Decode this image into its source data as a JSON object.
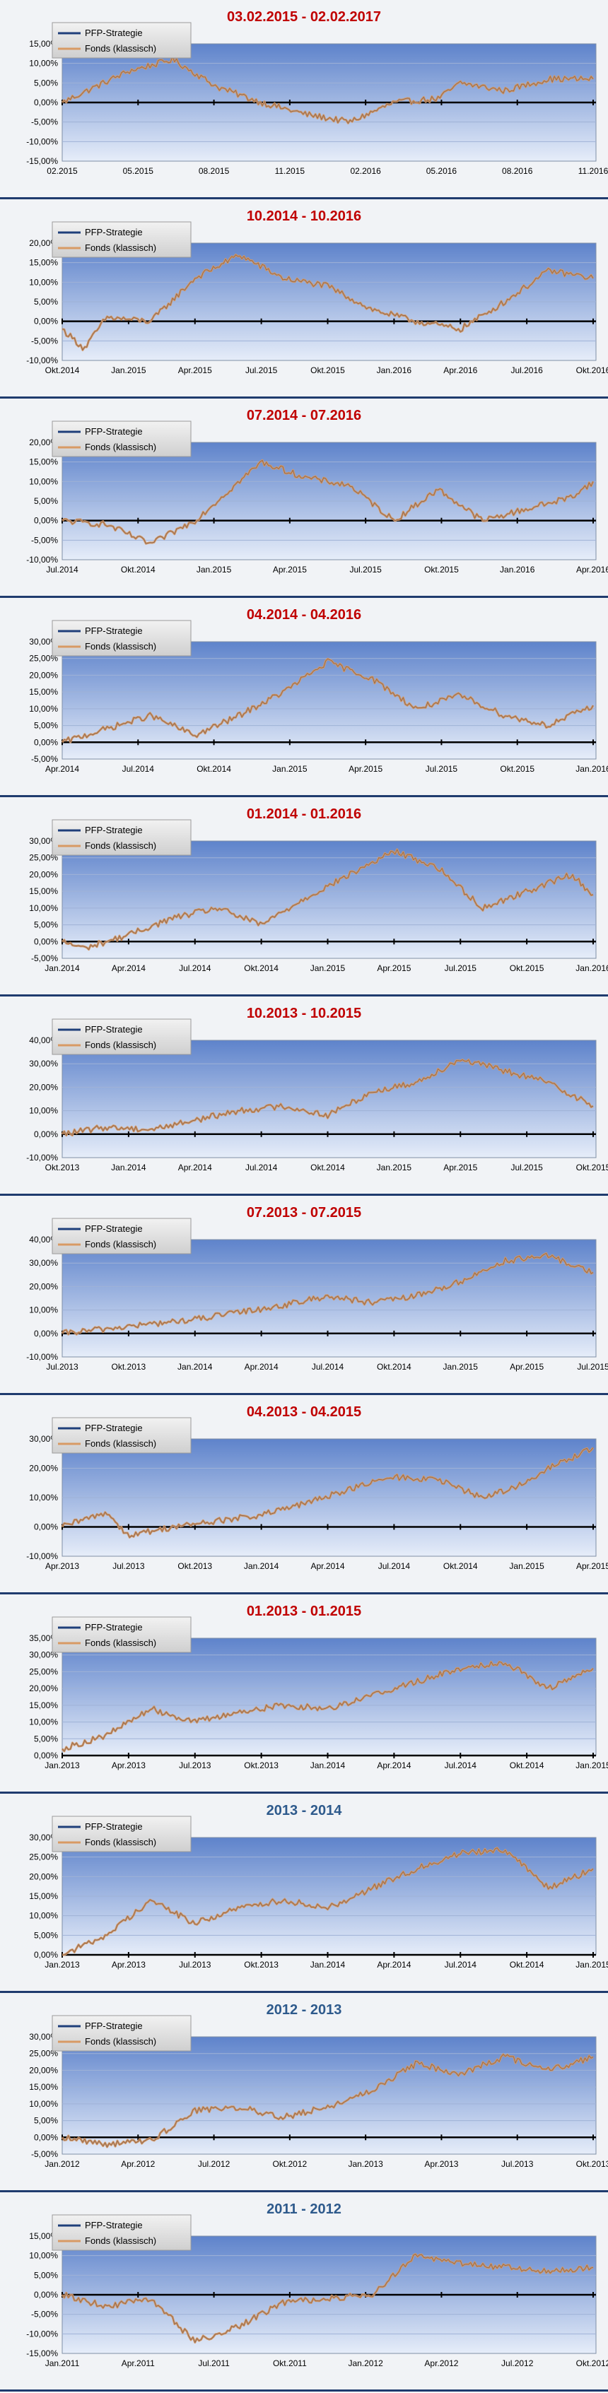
{
  "chart_data": [
    {
      "type": "line",
      "title": "03.02.2015 - 02.02.2017",
      "title_color": "#c00000",
      "legend": [
        "PFP-Strategie",
        "Fonds (klassisch)"
      ],
      "legend_position": "top-left",
      "grid": true,
      "yticks": [
        "15,00%",
        "10,00%",
        "5,00%",
        "0,00%",
        "-5,00%",
        "-10,00%",
        "-15,00%"
      ],
      "ylim": [
        -15,
        15
      ],
      "xticks": [
        "02.2015",
        "05.2015",
        "08.2015",
        "11.2015",
        "02.2016",
        "05.2016",
        "08.2016",
        "11.2016"
      ],
      "series": [
        {
          "name": "Fonds (klassisch)",
          "x": [
            0,
            3,
            5,
            7,
            9,
            11,
            13,
            15,
            17,
            18,
            20,
            22,
            24
          ],
          "values": [
            0,
            8,
            11,
            4,
            0,
            -3,
            -5,
            0,
            1,
            5,
            3,
            6,
            6
          ]
        }
      ]
    },
    {
      "type": "line",
      "title": "10.2014 - 10.2016",
      "title_color": "#c00000",
      "legend": [
        "PFP-Strategie",
        "Fonds (klassisch)"
      ],
      "legend_position": "top-left",
      "grid": true,
      "yticks": [
        "20,00%",
        "15,00%",
        "10,00%",
        "5,00%",
        "0,00%",
        "-5,00%",
        "-10,00%"
      ],
      "ylim": [
        -10,
        20
      ],
      "xticks": [
        "Okt.2014",
        "Jan.2015",
        "Apr.2015",
        "Jul.2015",
        "Okt.2015",
        "Jan.2016",
        "Apr.2016",
        "Jul.2016",
        "Okt.2016"
      ],
      "series": [
        {
          "name": "Fonds (klassisch)",
          "x": [
            0,
            1,
            2,
            4,
            6,
            8,
            10,
            12,
            14,
            16,
            18,
            20,
            22,
            24
          ],
          "values": [
            -2,
            -7,
            1,
            0,
            11,
            17,
            11,
            9,
            3,
            0,
            -2,
            5,
            13,
            11
          ]
        }
      ]
    },
    {
      "type": "line",
      "title": "07.2014 - 07.2016",
      "title_color": "#c00000",
      "legend": [
        "PFP-Strategie",
        "Fonds (klassisch)"
      ],
      "legend_position": "top-left",
      "grid": true,
      "yticks": [
        "20,00%",
        "15,00%",
        "10,00%",
        "5,00%",
        "0,00%",
        "-5,00%",
        "-10,00%"
      ],
      "ylim": [
        -10,
        20
      ],
      "xticks": [
        "Jul.2014",
        "Okt.2014",
        "Jan.2015",
        "Apr.2015",
        "Jul.2015",
        "Okt.2015",
        "Jan.2016",
        "Apr.2016"
      ],
      "series": [
        {
          "name": "Fonds (klassisch)",
          "x": [
            0,
            2,
            4,
            6,
            7,
            9,
            11,
            13,
            15,
            17,
            19,
            21,
            23,
            24
          ],
          "values": [
            0,
            -1,
            -6,
            0,
            5,
            15,
            11,
            9,
            0,
            8,
            0,
            3,
            6,
            10
          ]
        }
      ]
    },
    {
      "type": "line",
      "title": "04.2014 - 04.2016",
      "title_color": "#c00000",
      "legend": [
        "PFP-Strategie",
        "Fonds (klassisch)"
      ],
      "legend_position": "top-left",
      "grid": true,
      "yticks": [
        "30,00%",
        "25,00%",
        "20,00%",
        "15,00%",
        "10,00%",
        "5,00%",
        "0,00%",
        "-5,00%"
      ],
      "ylim": [
        -5,
        30
      ],
      "xticks": [
        "Apr.2014",
        "Jul.2014",
        "Okt.2014",
        "Jan.2015",
        "Apr.2015",
        "Jul.2015",
        "Okt.2015",
        "Jan.2016"
      ],
      "series": [
        {
          "name": "Fonds (klassisch)",
          "x": [
            0,
            2,
            4,
            6,
            8,
            10,
            12,
            14,
            16,
            18,
            20,
            22,
            24
          ],
          "values": [
            0,
            4,
            8,
            2,
            8,
            15,
            24,
            19,
            10,
            14,
            8,
            5,
            11
          ]
        }
      ]
    },
    {
      "type": "line",
      "title": "01.2014 - 01.2016",
      "title_color": "#c00000",
      "legend": [
        "PFP-Strategie",
        "Fonds (klassisch)"
      ],
      "legend_position": "top-left",
      "grid": true,
      "yticks": [
        "30,00%",
        "25,00%",
        "20,00%",
        "15,00%",
        "10,00%",
        "5,00%",
        "0,00%",
        "-5,00%"
      ],
      "ylim": [
        -5,
        30
      ],
      "xticks": [
        "Jan.2014",
        "Apr.2014",
        "Jul.2014",
        "Okt.2014",
        "Jan.2015",
        "Apr.2015",
        "Jul.2015",
        "Okt.2015",
        "Jan.2016"
      ],
      "series": [
        {
          "name": "Fonds (klassisch)",
          "x": [
            0,
            1,
            3,
            5,
            7,
            9,
            11,
            13,
            15,
            17,
            19,
            21,
            23,
            24
          ],
          "values": [
            0,
            -2,
            2,
            7,
            10,
            5,
            13,
            20,
            27,
            22,
            10,
            15,
            20,
            14
          ]
        }
      ]
    },
    {
      "type": "line",
      "title": "10.2013 - 10.2015",
      "title_color": "#c00000",
      "legend": [
        "PFP-Strategie",
        "Fonds (klassisch)"
      ],
      "legend_position": "top-left",
      "grid": true,
      "yticks": [
        "40,00%",
        "30,00%",
        "20,00%",
        "10,00%",
        "0,00%",
        "-10,00%"
      ],
      "ylim": [
        -10,
        40
      ],
      "xticks": [
        "Okt.2013",
        "Jan.2014",
        "Apr.2014",
        "Jul.2014",
        "Okt.2014",
        "Jan.2015",
        "Apr.2015",
        "Jul.2015",
        "Okt.2015"
      ],
      "series": [
        {
          "name": "Fonds (klassisch)",
          "x": [
            0,
            2,
            4,
            6,
            8,
            10,
            12,
            14,
            16,
            18,
            20,
            22,
            24
          ],
          "values": [
            0,
            3,
            2,
            6,
            10,
            12,
            8,
            18,
            22,
            32,
            27,
            22,
            12
          ]
        }
      ]
    },
    {
      "type": "line",
      "title": "07.2013 - 07.2015",
      "title_color": "#c00000",
      "legend": [
        "PFP-Strategie",
        "Fonds (klassisch)"
      ],
      "legend_position": "top-left",
      "grid": true,
      "yticks": [
        "40,00%",
        "30,00%",
        "20,00%",
        "10,00%",
        "0,00%",
        "-10,00%"
      ],
      "ylim": [
        -10,
        40
      ],
      "xticks": [
        "Jul.2013",
        "Okt.2013",
        "Jan.2014",
        "Apr.2014",
        "Jul.2014",
        "Okt.2014",
        "Jan.2015",
        "Apr.2015",
        "Jul.2015"
      ],
      "series": [
        {
          "name": "Fonds (klassisch)",
          "x": [
            0,
            2,
            4,
            6,
            8,
            10,
            12,
            14,
            16,
            18,
            20,
            22,
            24
          ],
          "values": [
            0,
            2,
            4,
            6,
            9,
            12,
            16,
            13,
            16,
            22,
            31,
            33,
            26
          ]
        }
      ]
    },
    {
      "type": "line",
      "title": "04.2013 - 04.2015",
      "title_color": "#c00000",
      "legend": [
        "PFP-Strategie",
        "Fonds (klassisch)"
      ],
      "legend_position": "top-left",
      "grid": true,
      "yticks": [
        "30,00%",
        "20,00%",
        "10,00%",
        "0,00%",
        "-10,00%"
      ],
      "ylim": [
        -10,
        30
      ],
      "xticks": [
        "Apr.2013",
        "Jul.2013",
        "Okt.2013",
        "Jan.2014",
        "Apr.2014",
        "Jul.2014",
        "Okt.2014",
        "Jan.2015",
        "Apr.2015"
      ],
      "series": [
        {
          "name": "Fonds (klassisch)",
          "x": [
            0,
            2,
            3,
            5,
            7,
            9,
            11,
            13,
            15,
            17,
            19,
            21,
            22,
            24
          ],
          "values": [
            0,
            5,
            -3,
            0,
            2,
            4,
            8,
            13,
            17,
            16,
            10,
            15,
            20,
            27
          ]
        }
      ]
    },
    {
      "type": "line",
      "title": "01.2013 - 01.2015",
      "title_color": "#c00000",
      "legend": [
        "PFP-Strategie",
        "Fonds (klassisch)"
      ],
      "legend_position": "top-left",
      "grid": true,
      "yticks": [
        "35,00%",
        "30,00%",
        "25,00%",
        "20,00%",
        "15,00%",
        "10,00%",
        "5,00%",
        "0,00%"
      ],
      "ylim": [
        0,
        35
      ],
      "xticks": [
        "Jan.2013",
        "Apr.2013",
        "Jul.2013",
        "Okt.2013",
        "Jan.2014",
        "Apr.2014",
        "Jul.2014",
        "Okt.2014",
        "Jan.2015"
      ],
      "series": [
        {
          "name": "Fonds (klassisch)",
          "x": [
            0,
            2,
            4,
            6,
            8,
            10,
            12,
            14,
            16,
            18,
            20,
            22,
            24
          ],
          "values": [
            2,
            6,
            14,
            10,
            13,
            15,
            14,
            18,
            22,
            26,
            28,
            20,
            26
          ]
        }
      ]
    },
    {
      "type": "line",
      "title": "2013 - 2014",
      "title_color": "#2e5a8c",
      "legend": [
        "PFP-Strategie",
        "Fonds (klassisch)"
      ],
      "legend_position": "top-left",
      "grid": true,
      "yticks": [
        "30,00%",
        "25,00%",
        "20,00%",
        "15,00%",
        "10,00%",
        "5,00%",
        "0,00%"
      ],
      "ylim": [
        0,
        30
      ],
      "xticks": [
        "Jan.2013",
        "Apr.2013",
        "Jul.2013",
        "Okt.2013",
        "Jan.2014",
        "Apr.2014",
        "Jul.2014",
        "Okt.2014",
        "Jan.2015"
      ],
      "series": [
        {
          "name": "Fonds (klassisch)",
          "x": [
            0,
            2,
            4,
            6,
            8,
            10,
            12,
            14,
            16,
            18,
            20,
            22,
            24
          ],
          "values": [
            0,
            5,
            14,
            8,
            12,
            14,
            12,
            17,
            22,
            26,
            27,
            17,
            22
          ]
        }
      ]
    },
    {
      "type": "line",
      "title": "2012 - 2013",
      "title_color": "#2e5a8c",
      "legend": [
        "PFP-Strategie",
        "Fonds (klassisch)"
      ],
      "legend_position": "top-left",
      "grid": true,
      "yticks": [
        "30,00%",
        "25,00%",
        "20,00%",
        "15,00%",
        "10,00%",
        "5,00%",
        "0,00%",
        "-5,00%"
      ],
      "ylim": [
        -5,
        30
      ],
      "xticks": [
        "Jan.2012",
        "Apr.2012",
        "Jul.2012",
        "Okt.2012",
        "Jan.2013",
        "Apr.2013",
        "Jul.2013",
        "Okt.2013"
      ],
      "series": [
        {
          "name": "Fonds (klassisch)",
          "x": [
            0,
            2,
            4,
            6,
            8,
            10,
            12,
            14,
            16,
            18,
            20,
            22,
            24
          ],
          "values": [
            0,
            -2,
            -1,
            8,
            9,
            6,
            9,
            14,
            22,
            19,
            24,
            20,
            24
          ]
        }
      ]
    },
    {
      "type": "line",
      "title": "2011 - 2012",
      "title_color": "#2e5a8c",
      "legend": [
        "PFP-Strategie",
        "Fonds (klassisch)"
      ],
      "legend_position": "top-left",
      "grid": true,
      "yticks": [
        "15,00%",
        "10,00%",
        "5,00%",
        "0,00%",
        "-5,00%",
        "-10,00%",
        "-15,00%"
      ],
      "ylim": [
        -15,
        15
      ],
      "xticks": [
        "Jan.2011",
        "Apr.2011",
        "Jul.2011",
        "Okt.2011",
        "Jan.2012",
        "Apr.2012",
        "Jul.2012",
        "Okt.2012"
      ],
      "series": [
        {
          "name": "Fonds (klassisch)",
          "x": [
            0,
            2,
            4,
            6,
            8,
            10,
            12,
            14,
            16,
            18,
            20,
            22,
            24
          ],
          "values": [
            0,
            -3,
            -1,
            -12,
            -8,
            -2,
            -1,
            0,
            10,
            8,
            7,
            6,
            7
          ]
        }
      ]
    }
  ]
}
